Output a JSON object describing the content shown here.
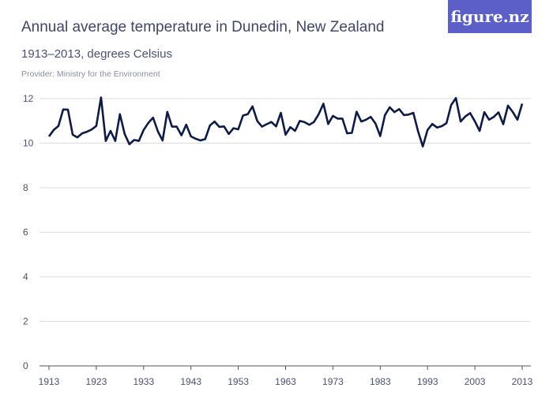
{
  "header": {
    "title": "Annual average temperature in Dunedin, New Zealand",
    "subtitle": "1913–2013, degrees Celsius",
    "provider": "Provider: Ministry for the Environment",
    "logo": "figure.nz"
  },
  "colors": {
    "line": "#0d1b45",
    "grid": "#dcdcdc",
    "logo_bg": "#5b5fc7"
  },
  "chart_data": {
    "type": "line",
    "title": "Annual average temperature in Dunedin, New Zealand",
    "subtitle": "1913–2013, degrees Celsius",
    "x_start": 1913,
    "x_end": 2013,
    "xlim": [
      1913,
      2013
    ],
    "ylim": [
      0,
      12
    ],
    "grid": true,
    "x_ticks": [
      "1913",
      "1923",
      "1933",
      "1943",
      "1953",
      "1963",
      "1973",
      "1983",
      "1993",
      "2003",
      "2013"
    ],
    "y_ticks": [
      "0",
      "2",
      "4",
      "6",
      "8",
      "10",
      "12"
    ],
    "values": [
      10.3,
      10.59,
      10.77,
      11.51,
      11.5,
      10.38,
      10.26,
      10.44,
      10.51,
      10.61,
      10.77,
      12.05,
      10.1,
      10.55,
      10.1,
      11.3,
      10.41,
      9.95,
      10.14,
      10.1,
      10.59,
      10.91,
      11.14,
      10.53,
      10.12,
      11.4,
      10.74,
      10.74,
      10.35,
      10.83,
      10.3,
      10.2,
      10.12,
      10.18,
      10.79,
      10.97,
      10.73,
      10.75,
      10.41,
      10.67,
      10.62,
      11.24,
      11.3,
      11.65,
      11.0,
      10.74,
      10.85,
      10.95,
      10.75,
      11.36,
      10.38,
      10.72,
      10.55,
      11.0,
      10.94,
      10.82,
      10.95,
      11.3,
      11.77,
      10.86,
      11.22,
      11.1,
      11.1,
      10.44,
      10.46,
      11.41,
      10.97,
      11.05,
      11.18,
      10.88,
      10.32,
      11.26,
      11.61,
      11.39,
      11.53,
      11.26,
      11.28,
      11.36,
      10.53,
      9.85,
      10.59,
      10.86,
      10.7,
      10.76,
      10.9,
      11.71,
      12.02,
      10.97,
      11.2,
      11.35,
      10.98,
      10.55,
      11.39,
      11.05,
      11.18,
      11.38,
      10.85,
      11.68,
      11.4,
      11.05,
      11.77
    ]
  }
}
